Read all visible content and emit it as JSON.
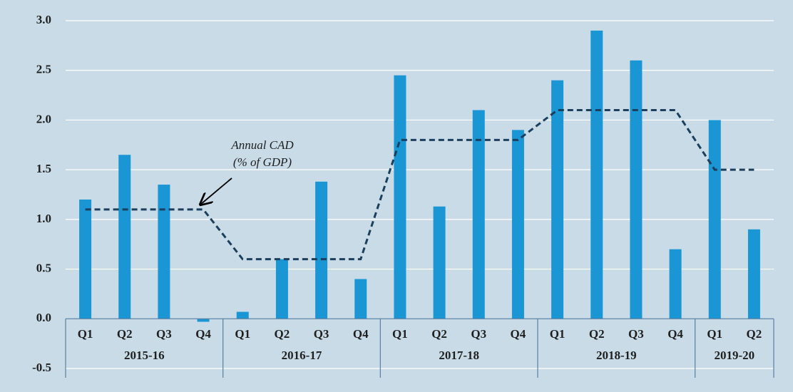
{
  "chart_data": {
    "type": "bar",
    "categories": [
      "Q1",
      "Q2",
      "Q3",
      "Q4",
      "Q1",
      "Q2",
      "Q3",
      "Q4",
      "Q1",
      "Q2",
      "Q3",
      "Q4",
      "Q1",
      "Q2",
      "Q3",
      "Q4",
      "Q1",
      "Q2"
    ],
    "groups": [
      {
        "label": "2015-16",
        "size": 4
      },
      {
        "label": "2016-17",
        "size": 4
      },
      {
        "label": "2017-18",
        "size": 4
      },
      {
        "label": "2018-19",
        "size": 4
      },
      {
        "label": "2019-20",
        "size": 2
      }
    ],
    "values": [
      1.2,
      1.65,
      1.35,
      -0.03,
      0.07,
      0.6,
      1.38,
      0.4,
      2.45,
      1.13,
      2.1,
      1.9,
      2.4,
      2.9,
      2.6,
      0.7,
      2.0,
      0.9
    ],
    "color": "#1a96d4",
    "line": {
      "values": [
        1.1,
        1.1,
        1.1,
        1.1,
        0.6,
        0.6,
        0.6,
        0.6,
        1.8,
        1.8,
        1.8,
        1.8,
        2.1,
        2.1,
        2.1,
        2.1,
        1.5,
        1.5
      ],
      "color": "#1b3f5c",
      "dashed": true
    },
    "annotation": [
      "Annual CAD",
      "(% of GDP)"
    ],
    "ylim": [
      -0.5,
      3
    ],
    "yticks": [
      -0.5,
      {
        "value": 0,
        "label": "0.0"
      },
      0.5,
      {
        "value": 1,
        "label": "1.0"
      },
      1.5,
      {
        "value": 2,
        "label": "2.0"
      },
      2.5,
      {
        "value": 3,
        "label": "3.0"
      }
    ],
    "grid": true
  }
}
